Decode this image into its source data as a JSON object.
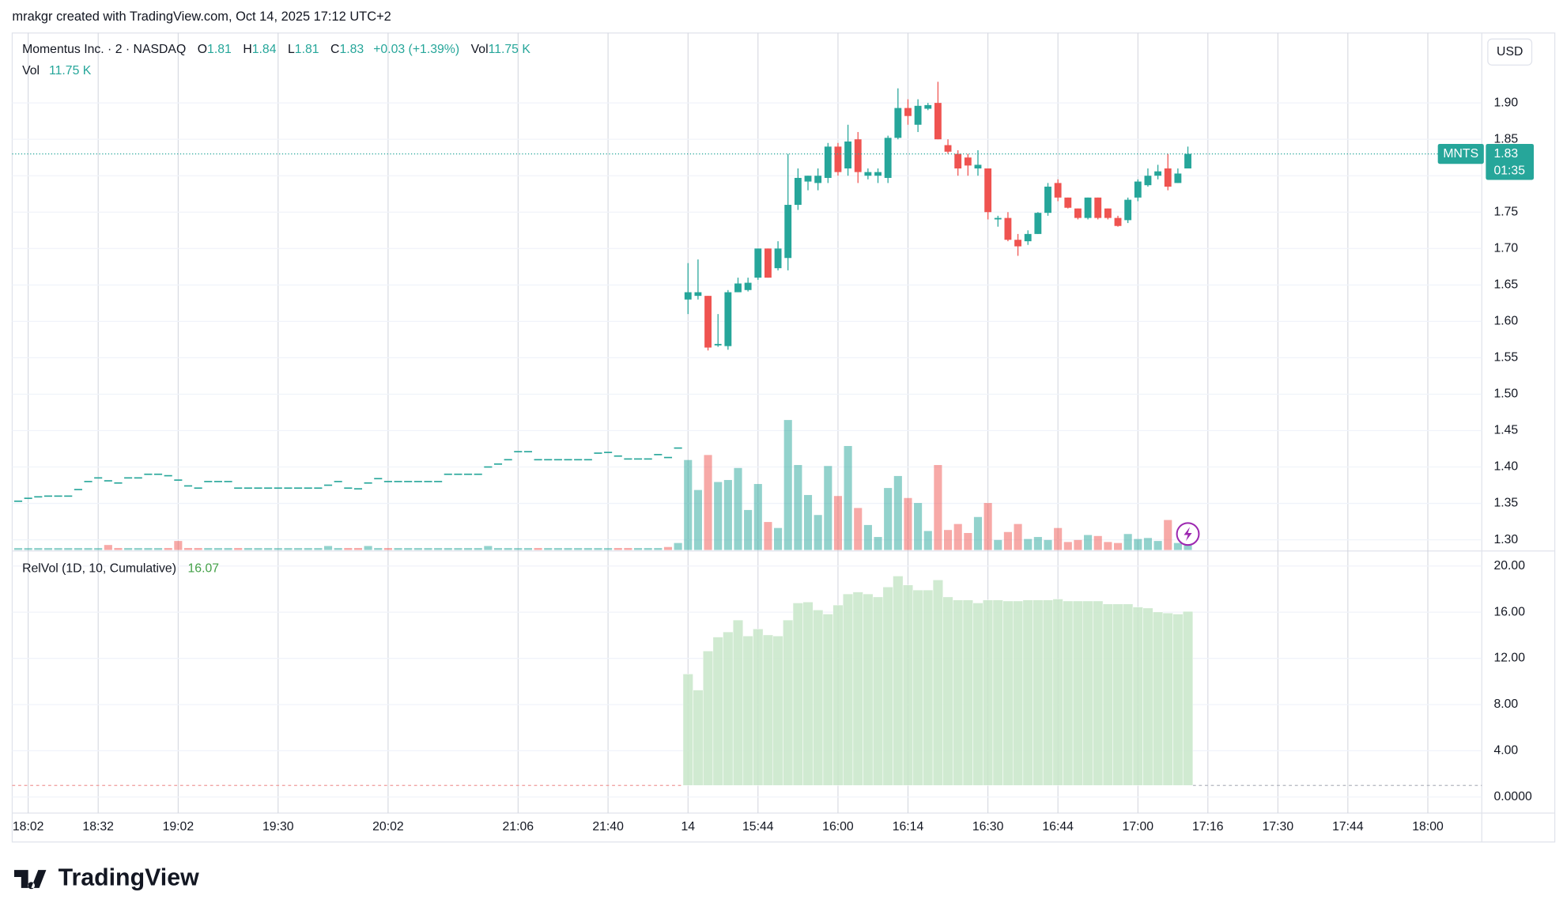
{
  "header": "mrakgr created with TradingView.com, Oct 14, 2025 17:12 UTC+2",
  "brand": "TradingView",
  "chart_data": {
    "type": "candlestick",
    "symbol_title": "Momentus Inc. · 2 · NASDAQ",
    "symbol": "MNTS",
    "currency": "USD",
    "countdown": "01:35",
    "legend": {
      "o": "O",
      "h": "H",
      "l": "L",
      "c": "C",
      "change": "+0.03 (+1.39%)",
      "vol": "Vol",
      "vol_value": "11.75 K"
    },
    "up_color": "#26a69a",
    "down_color": "#ef5350",
    "xlim": [
      -0.6,
      146.4
    ],
    "xticks": [
      {
        "value": 1,
        "label": "18:02"
      },
      {
        "value": 8,
        "label": "18:32"
      },
      {
        "value": 16,
        "label": "19:02"
      },
      {
        "value": 26,
        "label": "19:30"
      },
      {
        "value": 37,
        "label": "20:02"
      },
      {
        "value": 50,
        "label": "21:06"
      },
      {
        "value": 59,
        "label": "21:40"
      },
      {
        "value": 67,
        "label": "14"
      },
      {
        "value": 74,
        "label": "15:44"
      },
      {
        "value": 82,
        "label": "16:00"
      },
      {
        "value": 89,
        "label": "16:14"
      },
      {
        "value": 97,
        "label": "16:30"
      },
      {
        "value": 104,
        "label": "16:44"
      },
      {
        "value": 112,
        "label": "17:00"
      },
      {
        "value": 119,
        "label": "17:16"
      },
      {
        "value": 126,
        "label": "17:30"
      },
      {
        "value": 133,
        "label": "17:44"
      },
      {
        "value": 141,
        "label": "18:00"
      }
    ],
    "ylim": [
      1.286,
      1.996
    ],
    "yticks": [
      {
        "value": 1.3,
        "label": "1.30"
      },
      {
        "value": 1.35,
        "label": "1.35"
      },
      {
        "value": 1.4,
        "label": "1.40"
      },
      {
        "value": 1.45,
        "label": "1.45"
      },
      {
        "value": 1.5,
        "label": "1.50"
      },
      {
        "value": 1.55,
        "label": "1.55"
      },
      {
        "value": 1.6,
        "label": "1.60"
      },
      {
        "value": 1.65,
        "label": "1.65"
      },
      {
        "value": 1.7,
        "label": "1.70"
      },
      {
        "value": 1.75,
        "label": "1.75"
      },
      {
        "value": 1.8,
        "label": "1.80"
      },
      {
        "value": 1.85,
        "label": "1.85"
      },
      {
        "value": 1.9,
        "label": "1.90"
      }
    ],
    "premarket": {
      "values": [
        1.353,
        1.357,
        1.359,
        1.36,
        1.36,
        1.36,
        1.369,
        1.38,
        1.385,
        1.381,
        1.378,
        1.385,
        1.385,
        1.39,
        1.39,
        1.388,
        1.382,
        1.374,
        1.371,
        1.38,
        1.38,
        1.38,
        1.371,
        1.371,
        1.371,
        1.371,
        1.371,
        1.371,
        1.371,
        1.371,
        1.371,
        1.375,
        1.38,
        1.371,
        1.37,
        1.378,
        1.384,
        1.38,
        1.38,
        1.38,
        1.38,
        1.38,
        1.38,
        1.39,
        1.39,
        1.39,
        1.39,
        1.4,
        1.404,
        1.41,
        1.421,
        1.421,
        1.41,
        1.41,
        1.41,
        1.41,
        1.41,
        1.41,
        1.419,
        1.42,
        1.415,
        1.411,
        1.411,
        1.411,
        1.417,
        1.413,
        1.426
      ],
      "volume": [
        4700,
        4700,
        4700,
        4700,
        4700,
        4700,
        4700,
        4700,
        4700,
        11750,
        4700,
        4700,
        4700,
        4700,
        4700,
        4700,
        21150,
        4700,
        4700,
        4700,
        4700,
        4700,
        4700,
        4700,
        4700,
        4700,
        4700,
        4700,
        4700,
        4700,
        4700,
        9400,
        4700,
        4700,
        4700,
        9400,
        4700,
        4700,
        4700,
        4700,
        4700,
        4700,
        4700,
        4700,
        4700,
        4700,
        4700,
        9400,
        4700,
        4700,
        4700,
        4700,
        4700,
        4700,
        4700,
        4700,
        4700,
        4700,
        4700,
        4700,
        4700,
        4700,
        4700,
        4700,
        4700,
        7050,
        16450
      ]
    },
    "open": [
      1.63,
      1.635,
      1.635,
      1.567,
      1.566,
      1.64,
      1.643,
      1.66,
      1.7,
      1.673,
      1.687,
      1.76,
      1.792,
      1.79,
      1.797,
      1.84,
      1.81,
      1.85,
      1.8,
      1.8,
      1.797,
      1.852,
      1.893,
      1.87,
      1.892,
      1.9,
      1.842,
      1.83,
      1.825,
      1.81,
      1.81,
      1.74,
      1.742,
      1.712,
      1.71,
      1.72,
      1.749,
      1.79,
      1.77,
      1.755,
      1.742,
      1.77,
      1.755,
      1.742,
      1.739,
      1.77,
      1.787,
      1.8,
      1.81,
      1.79,
      1.81
    ],
    "high": [
      1.68,
      1.685,
      1.635,
      1.61,
      1.643,
      1.66,
      1.66,
      1.7,
      1.7,
      1.71,
      1.83,
      1.81,
      1.8,
      1.81,
      1.845,
      1.845,
      1.87,
      1.86,
      1.81,
      1.81,
      1.855,
      1.92,
      1.905,
      1.905,
      1.9,
      1.929,
      1.85,
      1.835,
      1.83,
      1.835,
      1.81,
      1.745,
      1.75,
      1.72,
      1.725,
      1.75,
      1.79,
      1.795,
      1.77,
      1.755,
      1.77,
      1.77,
      1.755,
      1.745,
      1.77,
      1.795,
      1.81,
      1.815,
      1.83,
      1.81,
      1.84
    ],
    "low": [
      1.61,
      1.63,
      1.56,
      1.565,
      1.561,
      1.64,
      1.641,
      1.657,
      1.66,
      1.67,
      1.67,
      1.753,
      1.78,
      1.78,
      1.79,
      1.8,
      1.8,
      1.79,
      1.795,
      1.79,
      1.79,
      1.85,
      1.87,
      1.86,
      1.89,
      1.85,
      1.83,
      1.8,
      1.8,
      1.8,
      1.74,
      1.73,
      1.71,
      1.69,
      1.705,
      1.72,
      1.745,
      1.765,
      1.755,
      1.74,
      1.74,
      1.74,
      1.74,
      1.73,
      1.735,
      1.765,
      1.785,
      1.795,
      1.78,
      1.79,
      1.81
    ],
    "close": [
      1.64,
      1.64,
      1.564,
      1.569,
      1.64,
      1.652,
      1.653,
      1.7,
      1.66,
      1.7,
      1.76,
      1.797,
      1.8,
      1.8,
      1.84,
      1.805,
      1.847,
      1.805,
      1.805,
      1.805,
      1.852,
      1.893,
      1.882,
      1.896,
      1.897,
      1.85,
      1.833,
      1.81,
      1.814,
      1.815,
      1.75,
      1.742,
      1.712,
      1.703,
      1.72,
      1.749,
      1.785,
      1.77,
      1.756,
      1.742,
      1.77,
      1.742,
      1.742,
      1.731,
      1.767,
      1.792,
      1.8,
      1.806,
      1.785,
      1.803,
      1.83
    ],
    "volume": [
      211500,
      141000,
      223250,
      159800,
      164500,
      192700,
      94000,
      155100,
      65800,
      51700,
      305500,
      199750,
      129250,
      82250,
      197400,
      126900,
      244400,
      98700,
      58750,
      30550,
      145700,
      173900,
      122200,
      110450,
      44650,
      199750,
      47000,
      61100,
      39950,
      77550,
      110450,
      23500,
      42300,
      61100,
      25850,
      30550,
      23500,
      51700,
      18800,
      23500,
      35250,
      32900,
      18800,
      16450,
      37600,
      25850,
      28200,
      21150,
      70500,
      16450,
      11750
    ],
    "relvol": {
      "title": "RelVol (1D, 10, Cumulative)",
      "color": "#c8e6c9",
      "baseline": 1,
      "ylim": [
        -1.385,
        21.21
      ],
      "yticks": [
        {
          "value": 0,
          "label": "0.0000"
        },
        {
          "value": 4,
          "label": "4.00"
        },
        {
          "value": 8,
          "label": "8.00"
        },
        {
          "value": 12,
          "label": "12.00"
        },
        {
          "value": 16,
          "label": "16.00"
        },
        {
          "value": 20,
          "label": "20.00"
        }
      ],
      "values": [
        10.65,
        9.26,
        12.64,
        13.85,
        14.29,
        15.32,
        13.94,
        14.55,
        14.03,
        13.94,
        15.32,
        16.8,
        16.88,
        16.19,
        15.84,
        16.62,
        17.58,
        17.75,
        17.58,
        17.32,
        18.18,
        19.13,
        18.36,
        17.92,
        17.92,
        18.79,
        17.32,
        17.06,
        17.06,
        16.8,
        17.06,
        17.06,
        16.97,
        16.97,
        17.06,
        17.06,
        17.06,
        17.14,
        16.97,
        16.97,
        16.97,
        16.97,
        16.71,
        16.71,
        16.71,
        16.45,
        16.36,
        16.02,
        15.93,
        15.84,
        16.07
      ]
    }
  }
}
